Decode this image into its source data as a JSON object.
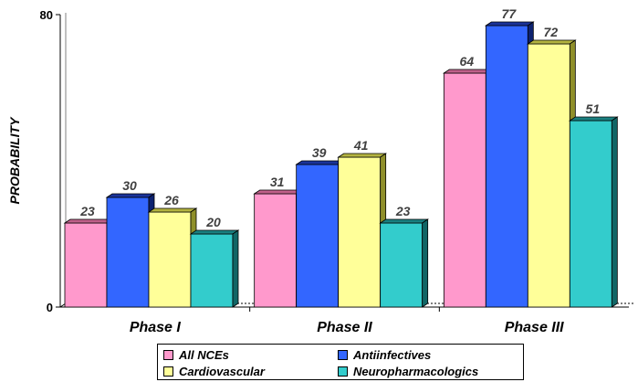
{
  "chart_data": {
    "type": "bar",
    "categories": [
      "Phase I",
      "Phase II",
      "Phase III"
    ],
    "series": [
      {
        "name": "All NCEs",
        "values": [
          23,
          31,
          64
        ],
        "color": "#ff99cc",
        "top_color": "#c0608a",
        "side_color": "#b05080"
      },
      {
        "name": "Antiinfectives",
        "values": [
          30,
          39,
          77
        ],
        "color": "#3366ff",
        "top_color": "#1a3399",
        "side_color": "#0d2270"
      },
      {
        "name": "Cardiovascular",
        "values": [
          26,
          41,
          72
        ],
        "color": "#ffff99",
        "top_color": "#b3b340",
        "side_color": "#8f8f2a"
      },
      {
        "name": "Neuropharmacologics",
        "values": [
          20,
          23,
          51
        ],
        "color": "#33cccc",
        "top_color": "#1a8080",
        "side_color": "#116666"
      }
    ],
    "ylabel": "PROBABILITY",
    "xlabel": "",
    "title": "",
    "ylim": [
      0,
      80
    ],
    "yticks": [
      "0",
      "80"
    ],
    "grid": false,
    "legend_position": "bottom",
    "style": "3d-column"
  }
}
